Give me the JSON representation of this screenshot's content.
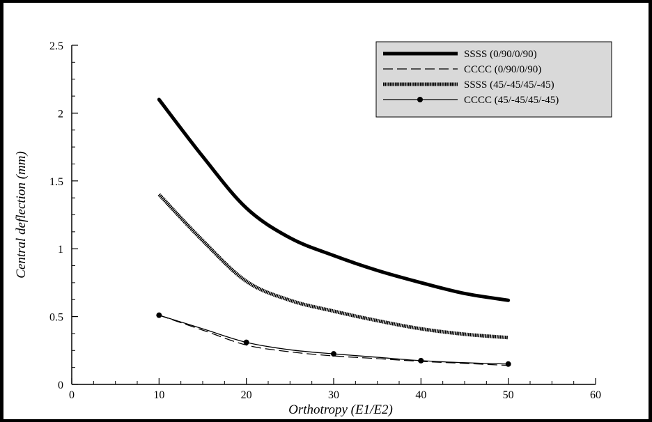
{
  "chart_data": {
    "type": "line",
    "title": "",
    "xlabel": "Orthotropy (E1/E2)",
    "ylabel": "Central deflection (mm)",
    "xlim": [
      0,
      60
    ],
    "ylim": [
      0,
      2.5
    ],
    "xticks": [
      0,
      10,
      20,
      30,
      40,
      50,
      60
    ],
    "yticks": [
      0,
      0.5,
      1,
      1.5,
      2,
      2.5
    ],
    "xtick_labels": [
      "0",
      "10",
      "20",
      "30",
      "40",
      "50",
      "60"
    ],
    "ytick_labels": [
      "0",
      "0.5",
      "1",
      "1.5",
      "2",
      "2.5"
    ],
    "grid": false,
    "legend_position": "top-right",
    "series": [
      {
        "name": "SSSS (0/90/0/90)",
        "style": "thick-solid",
        "color": "#000000",
        "x": [
          10,
          15,
          20,
          25,
          30,
          35,
          40,
          45,
          50
        ],
        "y": [
          2.1,
          1.68,
          1.3,
          1.08,
          0.95,
          0.84,
          0.75,
          0.67,
          0.62
        ]
      },
      {
        "name": "CCCC (0/90/0/90)",
        "style": "dashed",
        "color": "#000000",
        "x": [
          10,
          15,
          20,
          25,
          30,
          35,
          40,
          45,
          50
        ],
        "y": [
          0.51,
          0.4,
          0.29,
          0.24,
          0.21,
          0.19,
          0.17,
          0.155,
          0.14
        ]
      },
      {
        "name": "SSSS (45/-45/45/-45)",
        "style": "thick-dotted",
        "color": "#000000",
        "x": [
          10,
          15,
          20,
          25,
          30,
          35,
          40,
          45,
          50
        ],
        "y": [
          1.4,
          1.06,
          0.76,
          0.62,
          0.54,
          0.47,
          0.41,
          0.37,
          0.345
        ]
      },
      {
        "name": "CCCC (45/-45/45/-45)",
        "style": "thin-solid-markers",
        "color": "#000000",
        "x": [
          10,
          15,
          20,
          25,
          30,
          35,
          40,
          45,
          50
        ],
        "y": [
          0.51,
          0.41,
          0.31,
          0.255,
          0.225,
          0.2,
          0.175,
          0.16,
          0.15
        ],
        "markers_x": [
          10,
          20,
          30,
          40,
          50
        ],
        "markers_y": [
          0.51,
          0.31,
          0.225,
          0.175,
          0.15
        ]
      }
    ]
  }
}
